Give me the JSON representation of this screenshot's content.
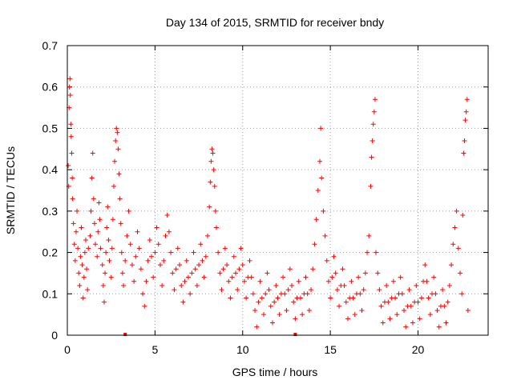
{
  "chart_data": {
    "type": "scatter",
    "title": "Day 134 of 2015, SRMTID for receiver bndy",
    "xlabel": "GPS time / hours",
    "ylabel": "SRMTID / TECUs",
    "xlim": [
      0,
      24
    ],
    "ylim": [
      0,
      0.7
    ],
    "xticks": [
      0,
      5,
      10,
      15,
      20
    ],
    "xtick_labels": [
      "0",
      "5",
      "10",
      "15",
      "20"
    ],
    "yticks": [
      0,
      0.1,
      0.2,
      0.3,
      0.4,
      0.5,
      0.6,
      0.7
    ],
    "ytick_labels": [
      "0",
      "0.1",
      "0.2",
      "0.3",
      "0.4",
      "0.5",
      "0.6",
      "0.7"
    ],
    "grid": true,
    "series": [
      {
        "name": "SRMTID",
        "color": "#ff0000",
        "marker": "plus",
        "points": [
          [
            0.05,
            0.41
          ],
          [
            0.08,
            0.36
          ],
          [
            0.1,
            0.55
          ],
          [
            0.12,
            0.6
          ],
          [
            0.15,
            0.62
          ],
          [
            0.17,
            0.58
          ],
          [
            0.2,
            0.51
          ],
          [
            0.22,
            0.48
          ],
          [
            0.25,
            0.44
          ],
          [
            0.28,
            0.38
          ],
          [
            0.3,
            0.33
          ],
          [
            0.35,
            0.27
          ],
          [
            0.4,
            0.22
          ],
          [
            0.45,
            0.18
          ],
          [
            0.5,
            0.25
          ],
          [
            0.55,
            0.3
          ],
          [
            0.6,
            0.21
          ],
          [
            0.65,
            0.15
          ],
          [
            0.7,
            0.12
          ],
          [
            0.75,
            0.19
          ],
          [
            0.8,
            0.26
          ],
          [
            0.85,
            0.17
          ],
          [
            0.9,
            0.09
          ],
          [
            0.95,
            0.14
          ],
          [
            1.0,
            0.2
          ],
          [
            1.05,
            0.23
          ],
          [
            1.1,
            0.16
          ],
          [
            1.15,
            0.11
          ],
          [
            1.2,
            0.21
          ],
          [
            1.3,
            0.24
          ],
          [
            1.35,
            0.3
          ],
          [
            1.4,
            0.38
          ],
          [
            1.45,
            0.44
          ],
          [
            1.5,
            0.33
          ],
          [
            1.55,
            0.27
          ],
          [
            1.6,
            0.22
          ],
          [
            1.7,
            0.19
          ],
          [
            1.75,
            0.25
          ],
          [
            1.8,
            0.32
          ],
          [
            1.85,
            0.28
          ],
          [
            1.9,
            0.21
          ],
          [
            2.0,
            0.17
          ],
          [
            2.05,
            0.12
          ],
          [
            2.1,
            0.08
          ],
          [
            2.15,
            0.15
          ],
          [
            2.2,
            0.2
          ],
          [
            2.25,
            0.26
          ],
          [
            2.3,
            0.31
          ],
          [
            2.35,
            0.23
          ],
          [
            2.4,
            0.18
          ],
          [
            2.5,
            0.14
          ],
          [
            2.55,
            0.21
          ],
          [
            2.6,
            0.28
          ],
          [
            2.65,
            0.36
          ],
          [
            2.7,
            0.42
          ],
          [
            2.75,
            0.47
          ],
          [
            2.8,
            0.5
          ],
          [
            2.85,
            0.49
          ],
          [
            2.9,
            0.45
          ],
          [
            2.95,
            0.39
          ],
          [
            3.0,
            0.33
          ],
          [
            3.05,
            0.27
          ],
          [
            3.1,
            0.2
          ],
          [
            3.15,
            0.15
          ],
          [
            3.2,
            0.12
          ],
          [
            3.3,
            0.18
          ],
          [
            3.4,
            0.24
          ],
          [
            3.5,
            0.3
          ],
          [
            3.6,
            0.22
          ],
          [
            3.7,
            0.17
          ],
          [
            3.8,
            0.13
          ],
          [
            3.9,
            0.19
          ],
          [
            4.0,
            0.25
          ],
          [
            4.1,
            0.21
          ],
          [
            4.2,
            0.16
          ],
          [
            4.3,
            0.1
          ],
          [
            4.4,
            0.07
          ],
          [
            4.5,
            0.13
          ],
          [
            4.6,
            0.18
          ],
          [
            4.7,
            0.23
          ],
          [
            4.8,
            0.19
          ],
          [
            4.9,
            0.14
          ],
          [
            5.0,
            0.2
          ],
          [
            5.1,
            0.26
          ],
          [
            5.2,
            0.22
          ],
          [
            5.3,
            0.17
          ],
          [
            5.4,
            0.12
          ],
          [
            5.5,
            0.18
          ],
          [
            5.6,
            0.24
          ],
          [
            5.7,
            0.29
          ],
          [
            5.8,
            0.25
          ],
          [
            5.9,
            0.2
          ],
          [
            6.0,
            0.15
          ],
          [
            6.1,
            0.11
          ],
          [
            6.2,
            0.16
          ],
          [
            6.3,
            0.21
          ],
          [
            6.4,
            0.17
          ],
          [
            6.5,
            0.12
          ],
          [
            6.6,
            0.08
          ],
          [
            6.7,
            0.13
          ],
          [
            6.8,
            0.18
          ],
          [
            6.9,
            0.14
          ],
          [
            7.0,
            0.1
          ],
          [
            7.1,
            0.15
          ],
          [
            7.2,
            0.2
          ],
          [
            7.3,
            0.16
          ],
          [
            7.4,
            0.12
          ],
          [
            7.5,
            0.17
          ],
          [
            7.6,
            0.22
          ],
          [
            7.7,
            0.18
          ],
          [
            7.8,
            0.14
          ],
          [
            7.9,
            0.19
          ],
          [
            8.0,
            0.24
          ],
          [
            8.1,
            0.31
          ],
          [
            8.15,
            0.37
          ],
          [
            8.2,
            0.42
          ],
          [
            8.25,
            0.45
          ],
          [
            8.3,
            0.44
          ],
          [
            8.35,
            0.4
          ],
          [
            8.4,
            0.36
          ],
          [
            8.45,
            0.3
          ],
          [
            8.5,
            0.26
          ],
          [
            8.6,
            0.2
          ],
          [
            8.7,
            0.15
          ],
          [
            8.8,
            0.11
          ],
          [
            8.9,
            0.16
          ],
          [
            9.0,
            0.21
          ],
          [
            9.1,
            0.17
          ],
          [
            9.2,
            0.13
          ],
          [
            9.3,
            0.09
          ],
          [
            9.4,
            0.14
          ],
          [
            9.5,
            0.19
          ],
          [
            9.6,
            0.15
          ],
          [
            9.7,
            0.11
          ],
          [
            9.8,
            0.16
          ],
          [
            9.9,
            0.21
          ],
          [
            10.0,
            0.17
          ],
          [
            10.1,
            0.13
          ],
          [
            10.2,
            0.09
          ],
          [
            10.3,
            0.14
          ],
          [
            10.4,
            0.18
          ],
          [
            10.5,
            0.14
          ],
          [
            10.6,
            0.1
          ],
          [
            10.7,
            0.06
          ],
          [
            10.8,
            0.02
          ],
          [
            10.9,
            0.08
          ],
          [
            11.0,
            0.13
          ],
          [
            11.1,
            0.09
          ],
          [
            11.2,
            0.05
          ],
          [
            11.3,
            0.1
          ],
          [
            11.4,
            0.15
          ],
          [
            11.5,
            0.11
          ],
          [
            11.6,
            0.07
          ],
          [
            11.7,
            0.03
          ],
          [
            11.8,
            0.08
          ],
          [
            11.9,
            0.12
          ],
          [
            12.0,
            0.09
          ],
          [
            12.1,
            0.05
          ],
          [
            12.2,
            0.1
          ],
          [
            12.3,
            0.14
          ],
          [
            12.4,
            0.1
          ],
          [
            12.5,
            0.06
          ],
          [
            12.6,
            0.11
          ],
          [
            12.7,
            0.16
          ],
          [
            12.8,
            0.12
          ],
          [
            12.9,
            0.08
          ],
          [
            13.0,
            0.04
          ],
          [
            13.1,
            0.09
          ],
          [
            13.2,
            0.13
          ],
          [
            13.3,
            0.09
          ],
          [
            13.4,
            0.05
          ],
          [
            13.5,
            0.1
          ],
          [
            13.6,
            0.14
          ],
          [
            13.7,
            0.1
          ],
          [
            13.8,
            0.06
          ],
          [
            13.9,
            0.11
          ],
          [
            14.0,
            0.16
          ],
          [
            14.1,
            0.22
          ],
          [
            14.2,
            0.28
          ],
          [
            14.3,
            0.35
          ],
          [
            14.4,
            0.42
          ],
          [
            14.45,
            0.5
          ],
          [
            14.5,
            0.38
          ],
          [
            14.6,
            0.3
          ],
          [
            14.7,
            0.24
          ],
          [
            14.8,
            0.18
          ],
          [
            14.9,
            0.13
          ],
          [
            15.0,
            0.09
          ],
          [
            15.1,
            0.14
          ],
          [
            15.2,
            0.19
          ],
          [
            15.3,
            0.15
          ],
          [
            15.4,
            0.11
          ],
          [
            15.5,
            0.07
          ],
          [
            15.6,
            0.12
          ],
          [
            15.7,
            0.16
          ],
          [
            15.8,
            0.12
          ],
          [
            15.9,
            0.08
          ],
          [
            16.0,
            0.04
          ],
          [
            16.1,
            0.09
          ],
          [
            16.2,
            0.13
          ],
          [
            16.3,
            0.09
          ],
          [
            16.4,
            0.05
          ],
          [
            16.5,
            0.1
          ],
          [
            16.6,
            0.14
          ],
          [
            16.7,
            0.1
          ],
          [
            16.8,
            0.06
          ],
          [
            16.9,
            0.11
          ],
          [
            17.0,
            0.15
          ],
          [
            17.1,
            0.2
          ],
          [
            17.2,
            0.24
          ],
          [
            17.3,
            0.36
          ],
          [
            17.35,
            0.43
          ],
          [
            17.4,
            0.47
          ],
          [
            17.45,
            0.51
          ],
          [
            17.5,
            0.54
          ],
          [
            17.55,
            0.57
          ],
          [
            17.6,
            0.2
          ],
          [
            17.7,
            0.15
          ],
          [
            17.8,
            0.11
          ],
          [
            17.9,
            0.07
          ],
          [
            18.0,
            0.03
          ],
          [
            18.1,
            0.08
          ],
          [
            18.2,
            0.12
          ],
          [
            18.3,
            0.08
          ],
          [
            18.4,
            0.04
          ],
          [
            18.5,
            0.09
          ],
          [
            18.6,
            0.13
          ],
          [
            18.7,
            0.09
          ],
          [
            18.8,
            0.05
          ],
          [
            18.9,
            0.1
          ],
          [
            19.0,
            0.14
          ],
          [
            19.1,
            0.1
          ],
          [
            19.2,
            0.06
          ],
          [
            19.3,
            0.02
          ],
          [
            19.4,
            0.07
          ],
          [
            19.5,
            0.11
          ],
          [
            19.6,
            0.07
          ],
          [
            19.7,
            0.03
          ],
          [
            19.8,
            0.08
          ],
          [
            19.9,
            0.12
          ],
          [
            20.0,
            0.08
          ],
          [
            20.1,
            0.04
          ],
          [
            20.2,
            0.09
          ],
          [
            20.3,
            0.13
          ],
          [
            20.4,
            0.17
          ],
          [
            20.5,
            0.13
          ],
          [
            20.6,
            0.09
          ],
          [
            20.7,
            0.05
          ],
          [
            20.8,
            0.1
          ],
          [
            20.9,
            0.14
          ],
          [
            21.0,
            0.1
          ],
          [
            21.1,
            0.06
          ],
          [
            21.2,
            0.02
          ],
          [
            21.3,
            0.07
          ],
          [
            21.4,
            0.11
          ],
          [
            21.5,
            0.07
          ],
          [
            21.6,
            0.03
          ],
          [
            21.7,
            0.08
          ],
          [
            21.8,
            0.12
          ],
          [
            21.9,
            0.17
          ],
          [
            22.0,
            0.22
          ],
          [
            22.1,
            0.26
          ],
          [
            22.2,
            0.3
          ],
          [
            22.3,
            0.21
          ],
          [
            22.4,
            0.15
          ],
          [
            22.5,
            0.1
          ],
          [
            22.55,
            0.29
          ],
          [
            22.6,
            0.44
          ],
          [
            22.65,
            0.47
          ],
          [
            22.7,
            0.52
          ],
          [
            22.75,
            0.54
          ],
          [
            22.8,
            0.57
          ],
          [
            22.85,
            0.06
          ]
        ]
      }
    ],
    "markers_on_axis": [
      {
        "x": 3.3,
        "y": 0
      },
      {
        "x": 13.0,
        "y": 0
      }
    ]
  }
}
